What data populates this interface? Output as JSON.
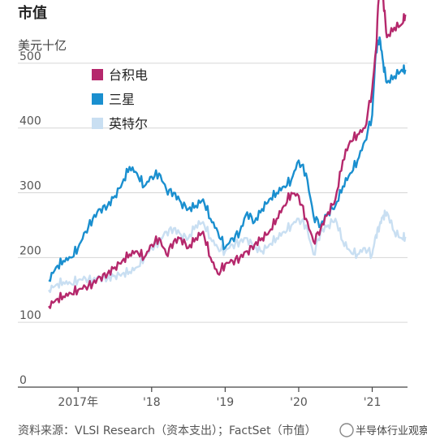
{
  "chart_data": {
    "type": "line",
    "title": "市值",
    "ylabel": "美元十亿",
    "ylim": [
      0,
      550
    ],
    "yticks": [
      0,
      100,
      200,
      300,
      400,
      500
    ],
    "xlim": [
      2016.6,
      2021.48
    ],
    "xticks": [
      {
        "value": 2017.0,
        "label": "2017年"
      },
      {
        "value": 2018.0,
        "label": "'18"
      },
      {
        "value": 2019.0,
        "label": "'19"
      },
      {
        "value": 2020.0,
        "label": "'20"
      },
      {
        "value": 2021.0,
        "label": "'21"
      }
    ],
    "grid": true,
    "legend_position": "top-left",
    "series": [
      {
        "name": "台积电",
        "color": "#b5286c",
        "x": [
          2016.6,
          2016.7,
          2016.8,
          2016.9,
          2017.0,
          2017.1,
          2017.2,
          2017.3,
          2017.4,
          2017.5,
          2017.6,
          2017.7,
          2017.8,
          2017.9,
          2018.0,
          2018.1,
          2018.2,
          2018.3,
          2018.4,
          2018.5,
          2018.6,
          2018.7,
          2018.8,
          2018.9,
          2019.0,
          2019.1,
          2019.2,
          2019.3,
          2019.4,
          2019.5,
          2019.6,
          2019.7,
          2019.8,
          2019.9,
          2020.0,
          2020.1,
          2020.2,
          2020.3,
          2020.4,
          2020.5,
          2020.6,
          2020.7,
          2020.8,
          2020.9,
          2021.0,
          2021.05,
          2021.1,
          2021.15,
          2021.2,
          2021.3,
          2021.4,
          2021.45
        ],
        "values": [
          125,
          135,
          140,
          145,
          150,
          155,
          160,
          170,
          175,
          185,
          195,
          205,
          210,
          200,
          220,
          230,
          205,
          225,
          230,
          215,
          230,
          240,
          200,
          175,
          190,
          195,
          200,
          210,
          220,
          230,
          240,
          260,
          280,
          300,
          295,
          260,
          225,
          245,
          270,
          290,
          350,
          380,
          390,
          400,
          460,
          520,
          630,
          600,
          540,
          555,
          560,
          575
        ]
      },
      {
        "name": "三星",
        "color": "#1a8fcf",
        "x": [
          2016.6,
          2016.7,
          2016.8,
          2016.9,
          2017.0,
          2017.1,
          2017.2,
          2017.3,
          2017.4,
          2017.5,
          2017.6,
          2017.7,
          2017.8,
          2017.9,
          2018.0,
          2018.1,
          2018.2,
          2018.3,
          2018.4,
          2018.5,
          2018.6,
          2018.7,
          2018.8,
          2018.9,
          2019.0,
          2019.1,
          2019.2,
          2019.3,
          2019.4,
          2019.5,
          2019.6,
          2019.7,
          2019.8,
          2019.9,
          2020.0,
          2020.1,
          2020.2,
          2020.3,
          2020.4,
          2020.5,
          2020.6,
          2020.7,
          2020.8,
          2020.9,
          2021.0,
          2021.05,
          2021.1,
          2021.15,
          2021.2,
          2021.3,
          2021.4,
          2021.45
        ],
        "values": [
          165,
          185,
          195,
          200,
          215,
          240,
          260,
          275,
          280,
          295,
          315,
          340,
          330,
          310,
          325,
          330,
          305,
          300,
          285,
          275,
          280,
          290,
          260,
          240,
          215,
          230,
          240,
          270,
          255,
          275,
          290,
          300,
          310,
          320,
          350,
          330,
          265,
          250,
          270,
          280,
          310,
          330,
          350,
          380,
          420,
          520,
          540,
          500,
          470,
          480,
          490,
          490
        ]
      },
      {
        "name": "英特尔",
        "color": "#c9dff2",
        "x": [
          2016.6,
          2016.7,
          2016.8,
          2016.9,
          2017.0,
          2017.1,
          2017.2,
          2017.3,
          2017.4,
          2017.5,
          2017.6,
          2017.7,
          2017.8,
          2017.9,
          2018.0,
          2018.1,
          2018.2,
          2018.3,
          2018.4,
          2018.5,
          2018.6,
          2018.7,
          2018.8,
          2018.9,
          2019.0,
          2019.1,
          2019.2,
          2019.3,
          2019.4,
          2019.5,
          2019.6,
          2019.7,
          2019.8,
          2019.9,
          2020.0,
          2020.1,
          2020.2,
          2020.3,
          2020.4,
          2020.5,
          2020.6,
          2020.7,
          2020.8,
          2020.9,
          2021.0,
          2021.05,
          2021.1,
          2021.15,
          2021.2,
          2021.3,
          2021.4,
          2021.45
        ],
        "values": [
          150,
          158,
          162,
          160,
          165,
          168,
          165,
          170,
          168,
          172,
          175,
          178,
          185,
          200,
          215,
          225,
          240,
          245,
          235,
          230,
          250,
          255,
          230,
          215,
          210,
          220,
          225,
          230,
          215,
          210,
          220,
          230,
          240,
          250,
          260,
          250,
          205,
          240,
          250,
          260,
          225,
          210,
          205,
          215,
          205,
          235,
          250,
          265,
          270,
          240,
          230,
          232
        ]
      }
    ],
    "source_text": "资料来源：VLSI Research（资本支出）；FactSet（市值）",
    "watermark_text": "半导体行业观察"
  }
}
